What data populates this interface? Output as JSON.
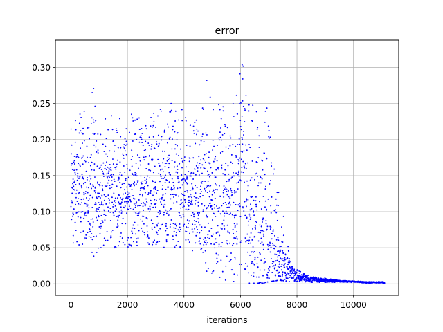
{
  "chart_data": {
    "type": "scatter",
    "title": "error",
    "xlabel": "iterations",
    "ylabel": "",
    "xlim": [
      -550,
      11600
    ],
    "ylim": [
      -0.016,
      0.338
    ],
    "xticks": [
      0,
      2000,
      4000,
      6000,
      8000,
      10000
    ],
    "yticks": [
      0.0,
      0.05,
      0.1,
      0.15,
      0.2,
      0.25,
      0.3
    ],
    "xtick_labels": [
      "0",
      "2000",
      "4000",
      "6000",
      "8000",
      "10000"
    ],
    "ytick_labels": [
      "0.00",
      "0.05",
      "0.10",
      "0.15",
      "0.20",
      "0.25",
      "0.30"
    ],
    "grid": true,
    "legend": "none",
    "marker_color": "#0000ff",
    "n_points": 11100,
    "series": [
      {
        "x": [
          0,
          200,
          400,
          600,
          800,
          1000,
          1200,
          1400,
          1600,
          1800,
          2000,
          2200,
          2400,
          2600,
          2800,
          3000,
          3200,
          3400,
          3600,
          3800,
          4000,
          4200,
          4400,
          4600,
          4800,
          5000,
          5200,
          5400,
          5600,
          5800,
          6000,
          6100,
          6200,
          6400,
          6600,
          6800,
          7000,
          7200,
          7400,
          7600,
          7800,
          8000,
          8500,
          9000,
          9500,
          10000,
          10500,
          11000
        ],
        "y_mean": [
          0.13,
          0.13,
          0.13,
          0.128,
          0.125,
          0.127,
          0.13,
          0.128,
          0.127,
          0.126,
          0.125,
          0.124,
          0.125,
          0.125,
          0.125,
          0.124,
          0.124,
          0.123,
          0.124,
          0.123,
          0.122,
          0.12,
          0.118,
          0.115,
          0.1,
          0.12,
          0.125,
          0.13,
          0.13,
          0.12,
          0.17,
          0.18,
          0.1,
          0.06,
          0.06,
          0.05,
          0.05,
          0.04,
          0.03,
          0.02,
          0.015,
          0.01,
          0.007,
          0.005,
          0.004,
          0.003,
          0.002,
          0.002
        ],
        "y_min": [
          0.06,
          0.05,
          0.045,
          0.05,
          0.035,
          0.05,
          0.05,
          0.05,
          0.05,
          0.05,
          0.05,
          0.05,
          0.05,
          0.05,
          0.05,
          0.05,
          0.05,
          0.05,
          0.05,
          0.05,
          0.05,
          0.05,
          0.04,
          0.03,
          0.01,
          0.005,
          0.003,
          0.002,
          0.002,
          0.001,
          0.001,
          0.001,
          0.001,
          0.001,
          0.001,
          0.001,
          0.003,
          0.004,
          0.005,
          0.004,
          0.003,
          0.003,
          0.002,
          0.002,
          0.002,
          0.002,
          0.001,
          0.001
        ],
        "y_max": [
          0.215,
          0.23,
          0.255,
          0.22,
          0.28,
          0.225,
          0.235,
          0.25,
          0.22,
          0.24,
          0.23,
          0.24,
          0.24,
          0.245,
          0.23,
          0.24,
          0.245,
          0.24,
          0.265,
          0.24,
          0.245,
          0.24,
          0.245,
          0.235,
          0.285,
          0.26,
          0.25,
          0.26,
          0.2,
          0.3,
          0.31,
          0.325,
          0.28,
          0.25,
          0.29,
          0.28,
          0.24,
          0.16,
          0.12,
          0.08,
          0.03,
          0.02,
          0.01,
          0.008,
          0.005,
          0.004,
          0.003,
          0.003
        ]
      }
    ]
  }
}
